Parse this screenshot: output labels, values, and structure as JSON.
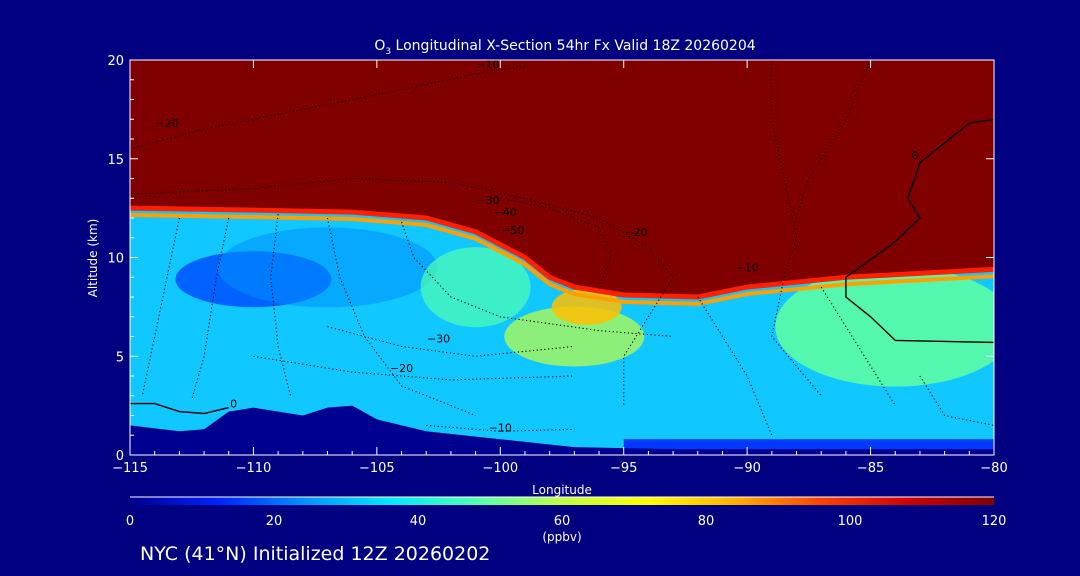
{
  "chart_data": {
    "type": "heatmap",
    "title_main": "O",
    "title_sub": "3",
    "title_rest": " Longitudinal X-Section 54hr  Fx Valid 18Z 20260204",
    "xlabel": "Longitude",
    "ylabel": "Altitude (km)",
    "xlim": [
      -115,
      -80
    ],
    "ylim": [
      0,
      20
    ],
    "x_ticks": [
      -115,
      -110,
      -105,
      -100,
      -95,
      -90,
      -85,
      -80
    ],
    "x_tick_labels": [
      "−115",
      "−110",
      "−105",
      "−100",
      "−95",
      "−90",
      "−85",
      "−80"
    ],
    "y_ticks": [
      0,
      5,
      10,
      15,
      20
    ],
    "y_tick_labels": [
      "0",
      "5",
      "10",
      "15",
      "20"
    ],
    "colorbar": {
      "label": "(ppbv)",
      "range": [
        0,
        120
      ],
      "ticks": [
        0,
        20,
        40,
        60,
        80,
        100,
        120
      ],
      "tick_labels": [
        "0",
        "20",
        "40",
        "60",
        "80",
        "100",
        "120"
      ],
      "colors": [
        "#000090",
        "#0020ff",
        "#0090ff",
        "#00e8ff",
        "#50ffb0",
        "#c0ff40",
        "#ffff00",
        "#ffb000",
        "#ff4000",
        "#d00000",
        "#800000"
      ]
    },
    "tropopause": [
      {
        "lon": -115,
        "alt": 12.5
      },
      {
        "lon": -110,
        "alt": 12.4
      },
      {
        "lon": -106,
        "alt": 12.3
      },
      {
        "lon": -103,
        "alt": 12.0
      },
      {
        "lon": -101,
        "alt": 11.3
      },
      {
        "lon": -99,
        "alt": 10.0
      },
      {
        "lon": -98,
        "alt": 9.0
      },
      {
        "lon": -97,
        "alt": 8.5
      },
      {
        "lon": -95,
        "alt": 8.1
      },
      {
        "lon": -92,
        "alt": 8.0
      },
      {
        "lon": -90,
        "alt": 8.5
      },
      {
        "lon": -86,
        "alt": 9.0
      },
      {
        "lon": -80,
        "alt": 9.4
      }
    ],
    "terrain": [
      {
        "lon": -115,
        "alt": 1.5
      },
      {
        "lon": -113,
        "alt": 1.2
      },
      {
        "lon": -112,
        "alt": 1.3
      },
      {
        "lon": -111,
        "alt": 2.2
      },
      {
        "lon": -110,
        "alt": 2.4
      },
      {
        "lon": -108,
        "alt": 2.0
      },
      {
        "lon": -107,
        "alt": 2.4
      },
      {
        "lon": -106,
        "alt": 2.5
      },
      {
        "lon": -105,
        "alt": 1.8
      },
      {
        "lon": -103,
        "alt": 1.2
      },
      {
        "lon": -100,
        "alt": 0.8
      },
      {
        "lon": -97,
        "alt": 0.4
      },
      {
        "lon": -93,
        "alt": 0.3
      },
      {
        "lon": -90,
        "alt": 0.3
      },
      {
        "lon": -85,
        "alt": 0.3
      },
      {
        "lon": -80,
        "alt": 0.3
      }
    ],
    "contour_lines": [
      {
        "style": "solid",
        "points": [
          {
            "lon": -115,
            "alt": 2.6
          },
          {
            "lon": -114,
            "alt": 2.6
          },
          {
            "lon": -113,
            "alt": 2.2
          },
          {
            "lon": -112,
            "alt": 2.1
          },
          {
            "lon": -111,
            "alt": 2.4
          }
        ]
      },
      {
        "style": "solid",
        "points": [
          {
            "lon": -80,
            "alt": 17.0
          },
          {
            "lon": -81,
            "alt": 16.8
          },
          {
            "lon": -83,
            "alt": 14.8
          },
          {
            "lon": -83.2,
            "alt": 14.0
          },
          {
            "lon": -83.5,
            "alt": 13.0
          },
          {
            "lon": -83,
            "alt": 12.0
          },
          {
            "lon": -84,
            "alt": 10.8
          },
          {
            "lon": -86,
            "alt": 9.0
          },
          {
            "lon": -86,
            "alt": 8.0
          },
          {
            "lon": -85,
            "alt": 7.0
          },
          {
            "lon": -84,
            "alt": 5.8
          },
          {
            "lon": -80,
            "alt": 5.7
          }
        ]
      },
      {
        "style": "dotted",
        "points": [
          {
            "lon": -115,
            "alt": 15.5
          },
          {
            "lon": -112,
            "alt": 16.5
          },
          {
            "lon": -108,
            "alt": 17.5
          },
          {
            "lon": -104,
            "alt": 18.5
          },
          {
            "lon": -101,
            "alt": 19.3
          },
          {
            "lon": -99,
            "alt": 19.7
          }
        ]
      },
      {
        "style": "dotted",
        "points": [
          {
            "lon": -115,
            "alt": 13.2
          },
          {
            "lon": -110,
            "alt": 13.5
          },
          {
            "lon": -106,
            "alt": 14.0
          },
          {
            "lon": -102,
            "alt": 13.8
          },
          {
            "lon": -99,
            "alt": 13.0
          },
          {
            "lon": -96,
            "alt": 12.0
          },
          {
            "lon": -94,
            "alt": 10.5
          },
          {
            "lon": -93,
            "alt": 9.0
          },
          {
            "lon": -94,
            "alt": 7.0
          },
          {
            "lon": -95,
            "alt": 5.0
          },
          {
            "lon": -95,
            "alt": 2.5
          }
        ]
      },
      {
        "style": "dotted",
        "points": [
          {
            "lon": -100,
            "alt": 13.0
          },
          {
            "lon": -98,
            "alt": 12.5
          },
          {
            "lon": -96,
            "alt": 11.5
          },
          {
            "lon": -95.5,
            "alt": 10.0
          },
          {
            "lon": -96,
            "alt": 8.5
          }
        ]
      },
      {
        "style": "dotted",
        "points": [
          {
            "lon": -113,
            "alt": 12.0
          },
          {
            "lon": -113.5,
            "alt": 9.0
          },
          {
            "lon": -114,
            "alt": 6.0
          },
          {
            "lon": -114.5,
            "alt": 3.0
          }
        ]
      },
      {
        "style": "dotted",
        "points": [
          {
            "lon": -111,
            "alt": 12.0
          },
          {
            "lon": -111.5,
            "alt": 9.0
          },
          {
            "lon": -112,
            "alt": 5.0
          },
          {
            "lon": -112.5,
            "alt": 2.8
          }
        ]
      },
      {
        "style": "dotted",
        "points": [
          {
            "lon": -109,
            "alt": 12.2
          },
          {
            "lon": -109.3,
            "alt": 9.0
          },
          {
            "lon": -109,
            "alt": 5.5
          },
          {
            "lon": -108.5,
            "alt": 3.0
          }
        ]
      },
      {
        "style": "dotted",
        "points": [
          {
            "lon": -107,
            "alt": 12.0
          },
          {
            "lon": -106.5,
            "alt": 9.0
          },
          {
            "lon": -105.5,
            "alt": 6.0
          },
          {
            "lon": -104,
            "alt": 3.5
          },
          {
            "lon": -101,
            "alt": 2.0
          }
        ]
      },
      {
        "style": "dotted",
        "points": [
          {
            "lon": -104,
            "alt": 11.8
          },
          {
            "lon": -103.5,
            "alt": 10.0
          },
          {
            "lon": -102,
            "alt": 8.0
          },
          {
            "lon": -100,
            "alt": 7.0
          },
          {
            "lon": -96,
            "alt": 6.3
          },
          {
            "lon": -93,
            "alt": 6.0
          }
        ]
      },
      {
        "style": "dotted",
        "points": [
          {
            "lon": -107,
            "alt": 6.5
          },
          {
            "lon": -104,
            "alt": 5.5
          },
          {
            "lon": -101,
            "alt": 5.0
          },
          {
            "lon": -97,
            "alt": 5.5
          }
        ]
      },
      {
        "style": "dotted",
        "points": [
          {
            "lon": -110,
            "alt": 5.0
          },
          {
            "lon": -106,
            "alt": 4.2
          },
          {
            "lon": -102,
            "alt": 3.8
          },
          {
            "lon": -97,
            "alt": 4.0
          }
        ]
      },
      {
        "style": "dotted",
        "points": [
          {
            "lon": -103,
            "alt": 1.5
          },
          {
            "lon": -100,
            "alt": 1.2
          },
          {
            "lon": -97,
            "alt": 1.3
          }
        ]
      },
      {
        "style": "dotted",
        "points": [
          {
            "lon": -89,
            "alt": 20.0
          },
          {
            "lon": -89,
            "alt": 17.0
          },
          {
            "lon": -88.5,
            "alt": 14.0
          },
          {
            "lon": -88,
            "alt": 11.0
          },
          {
            "lon": -88.5,
            "alt": 9.0
          },
          {
            "lon": -89,
            "alt": 6.0
          },
          {
            "lon": -87,
            "alt": 3.0
          }
        ]
      },
      {
        "style": "dotted",
        "points": [
          {
            "lon": -85,
            "alt": 20.0
          },
          {
            "lon": -86,
            "alt": 17.0
          },
          {
            "lon": -87.5,
            "alt": 14.0
          },
          {
            "lon": -88,
            "alt": 12.0
          }
        ]
      },
      {
        "style": "dotted",
        "points": [
          {
            "lon": -92,
            "alt": 8.0
          },
          {
            "lon": -91,
            "alt": 6.0
          },
          {
            "lon": -90,
            "alt": 4.0
          },
          {
            "lon": -89,
            "alt": 1.0
          }
        ]
      },
      {
        "style": "dotted",
        "points": [
          {
            "lon": -87,
            "alt": 8.5
          },
          {
            "lon": -86,
            "alt": 6.5
          },
          {
            "lon": -85,
            "alt": 4.5
          },
          {
            "lon": -84,
            "alt": 2.5
          }
        ]
      },
      {
        "style": "dotted",
        "points": [
          {
            "lon": -83,
            "alt": 4.0
          },
          {
            "lon": -82,
            "alt": 2.0
          },
          {
            "lon": -80,
            "alt": 1.5
          }
        ]
      }
    ],
    "contour_labels": [
      {
        "text": "−10",
        "lon": -100.5,
        "alt": 19.6
      },
      {
        "text": "−20",
        "lon": -113.5,
        "alt": 16.6
      },
      {
        "text": "−30",
        "lon": -100.5,
        "alt": 12.7
      },
      {
        "text": "−40",
        "lon": -99.8,
        "alt": 12.1
      },
      {
        "text": "−50",
        "lon": -99.5,
        "alt": 11.2
      },
      {
        "text": "−20",
        "lon": -94.5,
        "alt": 11.1
      },
      {
        "text": "−10",
        "lon": -90,
        "alt": 9.3
      },
      {
        "text": "−30",
        "lon": -102.5,
        "alt": 5.7
      },
      {
        "text": "−20",
        "lon": -104,
        "alt": 4.2
      },
      {
        "text": "−10",
        "lon": -100,
        "alt": 1.2
      },
      {
        "text": "0",
        "lon": -110.8,
        "alt": 2.4
      },
      {
        "text": "0",
        "lon": -83.2,
        "alt": 15.0
      }
    ]
  },
  "footer": {
    "text": "NYC (41°N) Initialized 12Z 20260202"
  }
}
